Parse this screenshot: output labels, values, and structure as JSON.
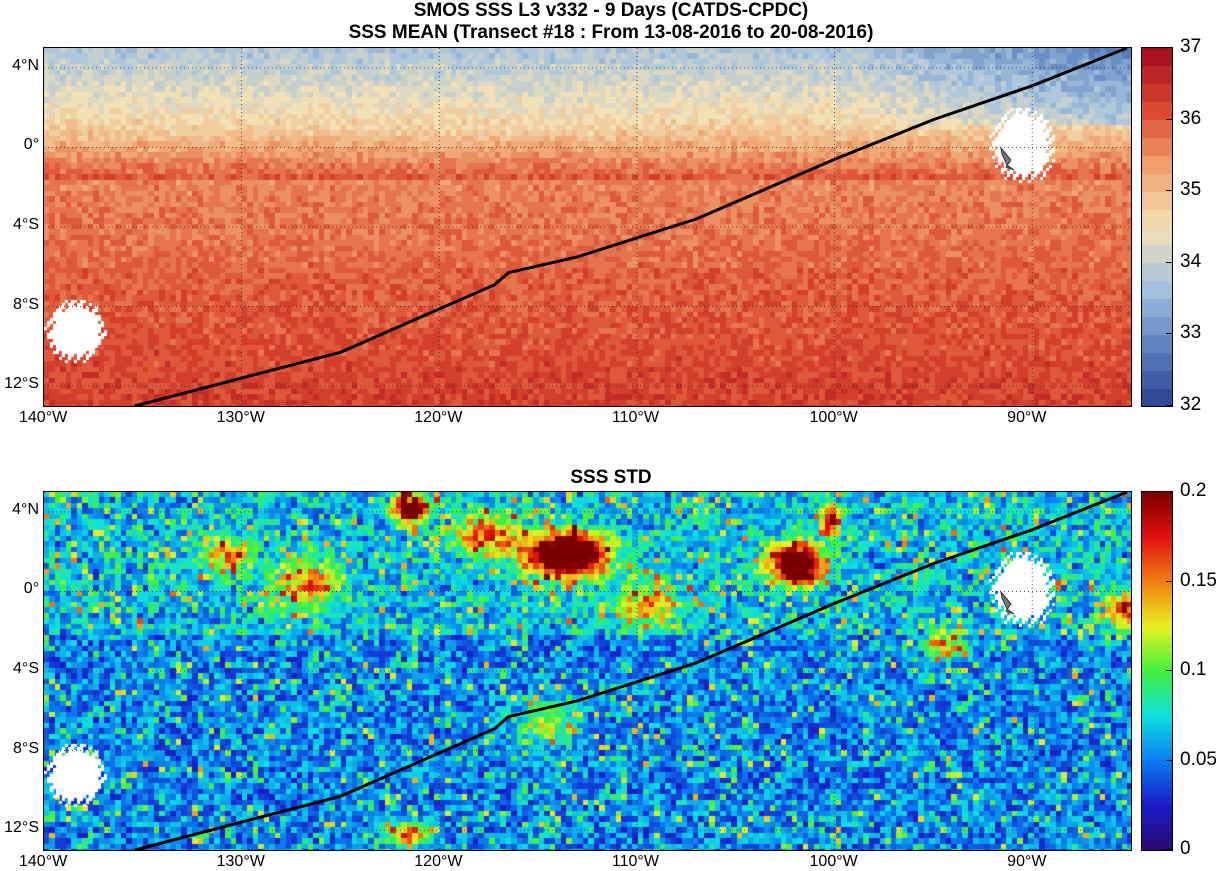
{
  "header": {
    "title_line1": "SMOS SSS L3 v332 - 9 Days (CATDS-CPDC)",
    "title_line2": "SSS MEAN (Transect #18 : From 13-08-2016 to 20-08-2016)"
  },
  "map_axes": {
    "lon_range": [
      -140,
      -85
    ],
    "lat_range": [
      -13,
      5
    ],
    "lon_ticks": [
      {
        "value": -140,
        "label": "140°W"
      },
      {
        "value": -130,
        "label": "130°W"
      },
      {
        "value": -120,
        "label": "120°W"
      },
      {
        "value": -110,
        "label": "110°W"
      },
      {
        "value": -100,
        "label": "100°W"
      },
      {
        "value": -90,
        "label": "90°W"
      }
    ],
    "lat_ticks": [
      {
        "value": 4,
        "label": "4°N"
      },
      {
        "value": 0,
        "label": "0°"
      },
      {
        "value": -4,
        "label": "4°S"
      },
      {
        "value": -8,
        "label": "8°S"
      },
      {
        "value": -12,
        "label": "12°S"
      }
    ],
    "grid": "dotted"
  },
  "transect": [
    [
      -135.4,
      -13
    ],
    [
      -125,
      -10.3
    ],
    [
      -117.2,
      -6.9
    ],
    [
      -116.5,
      -6.3
    ],
    [
      -113,
      -5.5
    ],
    [
      -107,
      -3.6
    ],
    [
      -100,
      -0.6
    ],
    [
      -95,
      1.4
    ],
    [
      -90,
      3.1
    ],
    [
      -85.2,
      5
    ]
  ],
  "land": [
    {
      "name": "Galapagos Islands"
    },
    {
      "name": "Marquesas Islands"
    }
  ],
  "panels": {
    "mean": {
      "title": "",
      "colorbar": {
        "min": 32,
        "max": 37,
        "levels": 20,
        "tick_labels": [
          "32",
          "33",
          "34",
          "35",
          "36",
          "37"
        ],
        "colormap": "blue-white-red",
        "colors": [
          "#2a3f8f",
          "#5a82c0",
          "#a7c4de",
          "#f2e0b5",
          "#f0a36f",
          "#d9452f",
          "#a10a1e"
        ]
      }
    },
    "std": {
      "title": "SSS STD",
      "colorbar": {
        "min": 0,
        "max": 0.2,
        "tick_labels": [
          "0",
          "0.05",
          "0.1",
          "0.15",
          "0.2"
        ],
        "colormap": "jet",
        "colors": [
          "#2a0a6e",
          "#1a1cc8",
          "#0a7cf0",
          "#0ee0e0",
          "#40f040",
          "#e8f020",
          "#f08010",
          "#e01010",
          "#7a0000"
        ]
      }
    }
  }
}
